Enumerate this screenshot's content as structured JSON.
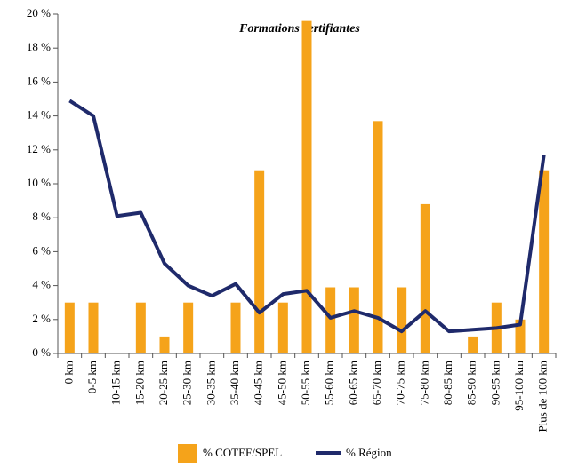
{
  "chart_data": {
    "type": "bar_line",
    "title": "Formations certifiantes",
    "categories": [
      "0 km",
      "0-5 km",
      "10-15 km",
      "15-20 km",
      "20-25 km",
      "25-30 km",
      "30-35 km",
      "35-40 km",
      "40-45 km",
      "45-50 km",
      "50-55 km",
      "55-60 km",
      "60-65 km",
      "65-70 km",
      "70-75 km",
      "75-80 km",
      "80-85 km",
      "85-90 km",
      "90-95 km",
      "95-100 km",
      "Plus de 100 km"
    ],
    "series": [
      {
        "name": "% COTEF/SPEL",
        "type": "bar",
        "color": "#f5a31a",
        "values": [
          3,
          3,
          0,
          3,
          1,
          3,
          0,
          3,
          10.8,
          3,
          19.6,
          3.9,
          3.9,
          13.7,
          3.9,
          8.8,
          0,
          1,
          3,
          2,
          10.8
        ]
      },
      {
        "name": "% Région",
        "type": "line",
        "color": "#1f2a6b",
        "values": [
          14.9,
          14.0,
          8.1,
          8.3,
          5.3,
          4.0,
          3.4,
          4.1,
          2.4,
          3.5,
          3.7,
          2.1,
          2.5,
          2.1,
          1.3,
          2.5,
          1.3,
          1.4,
          1.5,
          1.7,
          11.7
        ]
      }
    ],
    "ylim": [
      0,
      20
    ],
    "yticks": [
      {
        "value": 0,
        "label": "0 %"
      },
      {
        "value": 2,
        "label": "2 %"
      },
      {
        "value": 4,
        "label": "4 %"
      },
      {
        "value": 6,
        "label": "6 %"
      },
      {
        "value": 8,
        "label": "8 %"
      },
      {
        "value": 10,
        "label": "10 %"
      },
      {
        "value": 12,
        "label": "12 %"
      },
      {
        "value": 14,
        "label": "14 %"
      },
      {
        "value": 16,
        "label": "16 %"
      },
      {
        "value": 18,
        "label": "18 %"
      },
      {
        "value": 20,
        "label": "20 %"
      }
    ],
    "grid": false
  }
}
